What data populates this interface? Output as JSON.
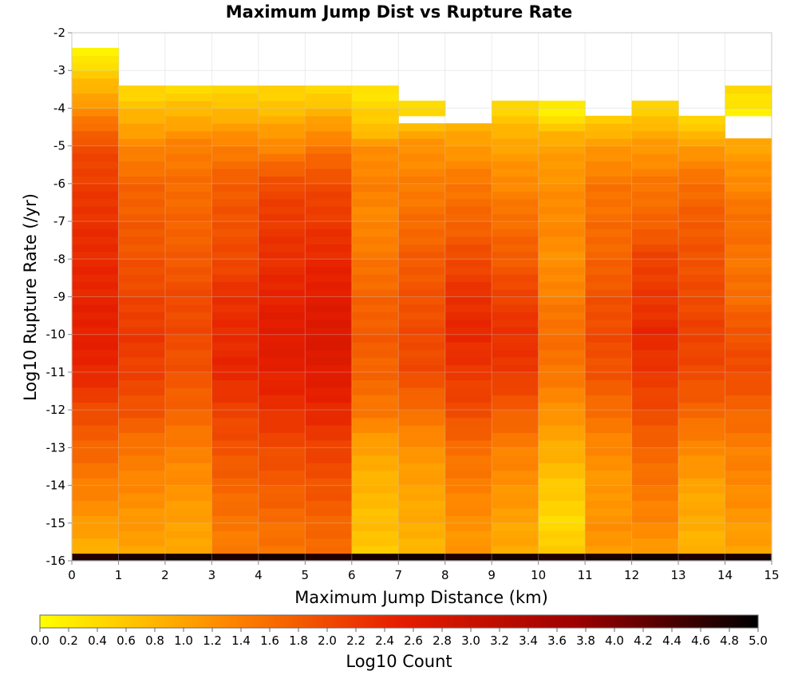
{
  "chart_data": {
    "type": "heatmap",
    "title": "Maximum Jump Dist vs Rupture Rate",
    "xlabel": "Maximum Jump Distance (km)",
    "ylabel": "Log10 Rupture Rate (/yr)",
    "xlim": [
      0,
      15
    ],
    "ylim": [
      -16,
      -2
    ],
    "x_ticks": [
      "0",
      "1",
      "2",
      "3",
      "4",
      "5",
      "6",
      "7",
      "8",
      "9",
      "10",
      "11",
      "12",
      "13",
      "14",
      "15"
    ],
    "y_ticks": [
      "-2",
      "-3",
      "-4",
      "-5",
      "-6",
      "-7",
      "-8",
      "-9",
      "-10",
      "-11",
      "-12",
      "-13",
      "-14",
      "-15",
      "-16"
    ],
    "grid": true,
    "x_bin_edges": [
      0,
      1,
      2,
      3,
      4,
      5,
      6,
      7,
      8,
      9,
      10,
      11,
      12,
      13,
      14,
      15
    ],
    "y_bin_low": -16.0,
    "y_bin_width": 0.2,
    "colorbar": {
      "label": "Log10 Count",
      "min": 0.0,
      "max": 5.0,
      "ticks": [
        "0.0",
        "0.2",
        "0.4",
        "0.6",
        "0.8",
        "1.0",
        "1.2",
        "1.4",
        "1.6",
        "1.8",
        "2.0",
        "2.2",
        "2.4",
        "2.6",
        "2.8",
        "3.0",
        "3.2",
        "3.4",
        "3.6",
        "3.8",
        "4.0",
        "4.2",
        "4.4",
        "4.6",
        "4.8",
        "5.0"
      ],
      "colors": [
        "#ffff00",
        "#ff8c00",
        "#e61e00",
        "#9b0000",
        "#000000"
      ]
    },
    "columns": [
      {
        "x": "0-1",
        "count_profile": [
          [
            -2.6,
            0.15
          ],
          [
            -3.0,
            0.5
          ],
          [
            -4.0,
            1.2
          ],
          [
            -5.0,
            2.0
          ],
          [
            -7.0,
            2.3
          ],
          [
            -10.0,
            2.5
          ],
          [
            -11.0,
            2.4
          ],
          [
            -12.0,
            2.0
          ],
          [
            -13.0,
            1.7
          ],
          [
            -14.0,
            1.4
          ],
          [
            -15.0,
            1.1
          ],
          [
            -15.8,
            0.8
          ]
        ],
        "bottom_count": 4.8
      },
      {
        "x": "1-2",
        "count_profile": [
          [
            -3.6,
            0.45
          ],
          [
            -5.0,
            1.3
          ],
          [
            -6.0,
            1.7
          ],
          [
            -7.0,
            1.8
          ],
          [
            -8.0,
            1.9
          ],
          [
            -10.0,
            2.2
          ],
          [
            -11.0,
            2.1
          ],
          [
            -12.0,
            1.9
          ],
          [
            -13.0,
            1.5
          ],
          [
            -14.0,
            1.3
          ],
          [
            -15.0,
            1.1
          ],
          [
            -15.8,
            1.0
          ]
        ],
        "bottom_count": 4.8
      },
      {
        "x": "2-3",
        "count_profile": [
          [
            -3.6,
            0.45
          ],
          [
            -5.0,
            1.4
          ],
          [
            -6.0,
            1.6
          ],
          [
            -7.0,
            1.7
          ],
          [
            -8.0,
            1.8
          ],
          [
            -9.0,
            2.0
          ],
          [
            -10.0,
            2.0
          ],
          [
            -11.0,
            1.9
          ],
          [
            -12.0,
            1.7
          ],
          [
            -13.0,
            1.4
          ],
          [
            -14.0,
            1.2
          ],
          [
            -15.0,
            1.0
          ],
          [
            -15.8,
            1.0
          ]
        ],
        "bottom_count": 4.8
      },
      {
        "x": "3-4",
        "count_profile": [
          [
            -3.6,
            0.45
          ],
          [
            -5.0,
            1.4
          ],
          [
            -6.0,
            1.8
          ],
          [
            -7.0,
            1.9
          ],
          [
            -8.0,
            2.0
          ],
          [
            -9.0,
            2.3
          ],
          [
            -11.0,
            2.4
          ],
          [
            -12.0,
            2.1
          ],
          [
            -13.0,
            1.9
          ],
          [
            -14.0,
            1.7
          ],
          [
            -15.0,
            1.5
          ],
          [
            -15.8,
            1.4
          ]
        ],
        "bottom_count": 4.8
      },
      {
        "x": "4-5",
        "count_profile": [
          [
            -3.6,
            0.45
          ],
          [
            -5.0,
            1.3
          ],
          [
            -6.0,
            2.0
          ],
          [
            -7.0,
            2.2
          ],
          [
            -8.0,
            2.3
          ],
          [
            -10.0,
            2.6
          ],
          [
            -11.0,
            2.5
          ],
          [
            -12.0,
            2.3
          ],
          [
            -13.0,
            2.0
          ],
          [
            -14.0,
            1.8
          ],
          [
            -15.0,
            1.6
          ],
          [
            -15.8,
            1.5
          ]
        ],
        "bottom_count": 4.8
      },
      {
        "x": "5-6",
        "count_profile": [
          [
            -3.6,
            0.45
          ],
          [
            -5.0,
            1.5
          ],
          [
            -6.0,
            2.0
          ],
          [
            -7.0,
            2.2
          ],
          [
            -8.0,
            2.4
          ],
          [
            -10.0,
            2.7
          ],
          [
            -11.0,
            2.6
          ],
          [
            -12.0,
            2.4
          ],
          [
            -13.0,
            2.1
          ],
          [
            -14.0,
            1.9
          ],
          [
            -15.0,
            1.7
          ],
          [
            -15.8,
            1.6
          ]
        ],
        "bottom_count": 4.8
      },
      {
        "x": "6-7",
        "count_profile": [
          [
            -3.6,
            0.3
          ],
          [
            -4.6,
            0.7
          ],
          [
            -5.0,
            1.2
          ],
          [
            -6.0,
            1.4
          ],
          [
            -7.0,
            1.3
          ],
          [
            -8.0,
            1.5
          ],
          [
            -9.0,
            1.7
          ],
          [
            -10.0,
            1.8
          ],
          [
            -11.0,
            1.7
          ],
          [
            -12.0,
            1.5
          ],
          [
            -13.0,
            1.0
          ],
          [
            -14.0,
            0.8
          ],
          [
            -15.0,
            0.7
          ],
          [
            -15.8,
            0.6
          ]
        ],
        "bottom_count": 4.8
      },
      {
        "x": "7-8",
        "count_profile": [
          [
            -3.9,
            0.3
          ],
          [
            -4.6,
            0.9
          ],
          [
            -5.0,
            1.2
          ],
          [
            -6.0,
            1.4
          ],
          [
            -7.0,
            1.6
          ],
          [
            -8.0,
            1.8
          ],
          [
            -9.0,
            1.9
          ],
          [
            -10.0,
            2.0
          ],
          [
            -11.0,
            2.0
          ],
          [
            -12.0,
            1.6
          ],
          [
            -13.0,
            1.2
          ],
          [
            -14.0,
            1.0
          ],
          [
            -15.0,
            0.9
          ],
          [
            -15.8,
            0.8
          ]
        ],
        "bottom_count": 4.8
      },
      {
        "x": "8-9",
        "count_profile": [
          [
            -4.5,
            0.85
          ],
          [
            -5.0,
            1.1
          ],
          [
            -6.0,
            1.5
          ],
          [
            -7.0,
            1.7
          ],
          [
            -8.0,
            2.0
          ],
          [
            -9.0,
            2.3
          ],
          [
            -10.0,
            2.4
          ],
          [
            -11.0,
            2.2
          ],
          [
            -12.0,
            2.0
          ],
          [
            -13.0,
            1.6
          ],
          [
            -14.0,
            1.4
          ],
          [
            -15.0,
            1.2
          ],
          [
            -15.8,
            1.1
          ]
        ],
        "bottom_count": 4.8
      },
      {
        "x": "9-10",
        "count_profile": [
          [
            -3.9,
            0.4
          ],
          [
            -4.6,
            0.8
          ],
          [
            -5.0,
            1.0
          ],
          [
            -6.0,
            1.3
          ],
          [
            -7.0,
            1.6
          ],
          [
            -8.0,
            1.8
          ],
          [
            -9.0,
            2.1
          ],
          [
            -10.0,
            2.3
          ],
          [
            -11.0,
            2.2
          ],
          [
            -12.0,
            1.8
          ],
          [
            -13.0,
            1.4
          ],
          [
            -14.0,
            1.2
          ],
          [
            -15.0,
            1.0
          ],
          [
            -15.8,
            0.9
          ]
        ],
        "bottom_count": 4.8
      },
      {
        "x": "10-11",
        "count_profile": [
          [
            -3.9,
            0.3
          ],
          [
            -4.2,
            0.1
          ],
          [
            -4.6,
            0.8
          ],
          [
            -5.0,
            1.0
          ],
          [
            -6.0,
            1.2
          ],
          [
            -7.0,
            1.3
          ],
          [
            -8.0,
            1.2
          ],
          [
            -9.0,
            1.4
          ],
          [
            -10.0,
            1.6
          ],
          [
            -11.0,
            1.5
          ],
          [
            -12.0,
            1.2
          ],
          [
            -13.0,
            0.9
          ],
          [
            -14.0,
            0.6
          ],
          [
            -15.0,
            0.4
          ],
          [
            -15.8,
            0.6
          ]
        ],
        "bottom_count": 4.8
      },
      {
        "x": "11-12",
        "count_profile": [
          [
            -4.2,
            0.5
          ],
          [
            -5.0,
            1.1
          ],
          [
            -6.0,
            1.5
          ],
          [
            -7.0,
            1.6
          ],
          [
            -8.0,
            1.7
          ],
          [
            -9.0,
            1.9
          ],
          [
            -10.0,
            2.0
          ],
          [
            -11.0,
            1.9
          ],
          [
            -12.0,
            1.6
          ],
          [
            -13.0,
            1.3
          ],
          [
            -14.0,
            1.1
          ],
          [
            -15.0,
            1.2
          ],
          [
            -15.8,
            1.1
          ]
        ],
        "bottom_count": 4.8
      },
      {
        "x": "12-13",
        "count_profile": [
          [
            -3.9,
            0.4
          ],
          [
            -4.6,
            0.9
          ],
          [
            -5.0,
            1.1
          ],
          [
            -6.0,
            1.5
          ],
          [
            -7.0,
            1.7
          ],
          [
            -8.0,
            2.1
          ],
          [
            -9.0,
            2.2
          ],
          [
            -10.0,
            2.4
          ],
          [
            -11.0,
            2.2
          ],
          [
            -12.0,
            2.0
          ],
          [
            -13.0,
            1.7
          ],
          [
            -14.0,
            1.5
          ],
          [
            -15.0,
            1.3
          ],
          [
            -15.8,
            1.1
          ]
        ],
        "bottom_count": 4.8
      },
      {
        "x": "13-14",
        "count_profile": [
          [
            -4.2,
            0.5
          ],
          [
            -4.6,
            0.6
          ],
          [
            -5.0,
            1.1
          ],
          [
            -6.0,
            1.6
          ],
          [
            -7.0,
            1.8
          ],
          [
            -8.0,
            1.9
          ],
          [
            -9.0,
            2.0
          ],
          [
            -10.0,
            2.1
          ],
          [
            -11.0,
            2.0
          ],
          [
            -12.0,
            1.7
          ],
          [
            -13.0,
            1.3
          ],
          [
            -14.0,
            1.0
          ],
          [
            -15.0,
            0.9
          ],
          [
            -15.8,
            0.8
          ]
        ],
        "bottom_count": 4.8
      },
      {
        "x": "14-15",
        "count_profile": [
          [
            -3.6,
            0.35
          ],
          [
            -4.2,
            0.2
          ],
          [
            -4.8,
            0.9
          ],
          [
            -5.0,
            1.0
          ],
          [
            -6.0,
            1.3
          ],
          [
            -7.0,
            1.6
          ],
          [
            -8.0,
            1.5
          ],
          [
            -9.0,
            1.6
          ],
          [
            -10.0,
            1.9
          ],
          [
            -11.0,
            2.0
          ],
          [
            -12.0,
            1.7
          ],
          [
            -13.0,
            1.4
          ],
          [
            -14.0,
            1.3
          ],
          [
            -15.0,
            1.1
          ],
          [
            -15.8,
            1.0
          ]
        ],
        "bottom_count": 4.8
      }
    ],
    "empty_cells": [
      {
        "x": "0-1",
        "y_above": -2.6
      },
      {
        "x": "7-8",
        "y_range": [
          -4.4,
          -4.2
        ]
      },
      {
        "x": "11-12",
        "y_range": [
          -4.2,
          -3.8
        ]
      },
      {
        "x": "13-14",
        "y_range": [
          -4.2,
          -3.8
        ]
      },
      {
        "x": "14-15",
        "y_range": [
          -4.8,
          -4.2
        ]
      }
    ]
  }
}
